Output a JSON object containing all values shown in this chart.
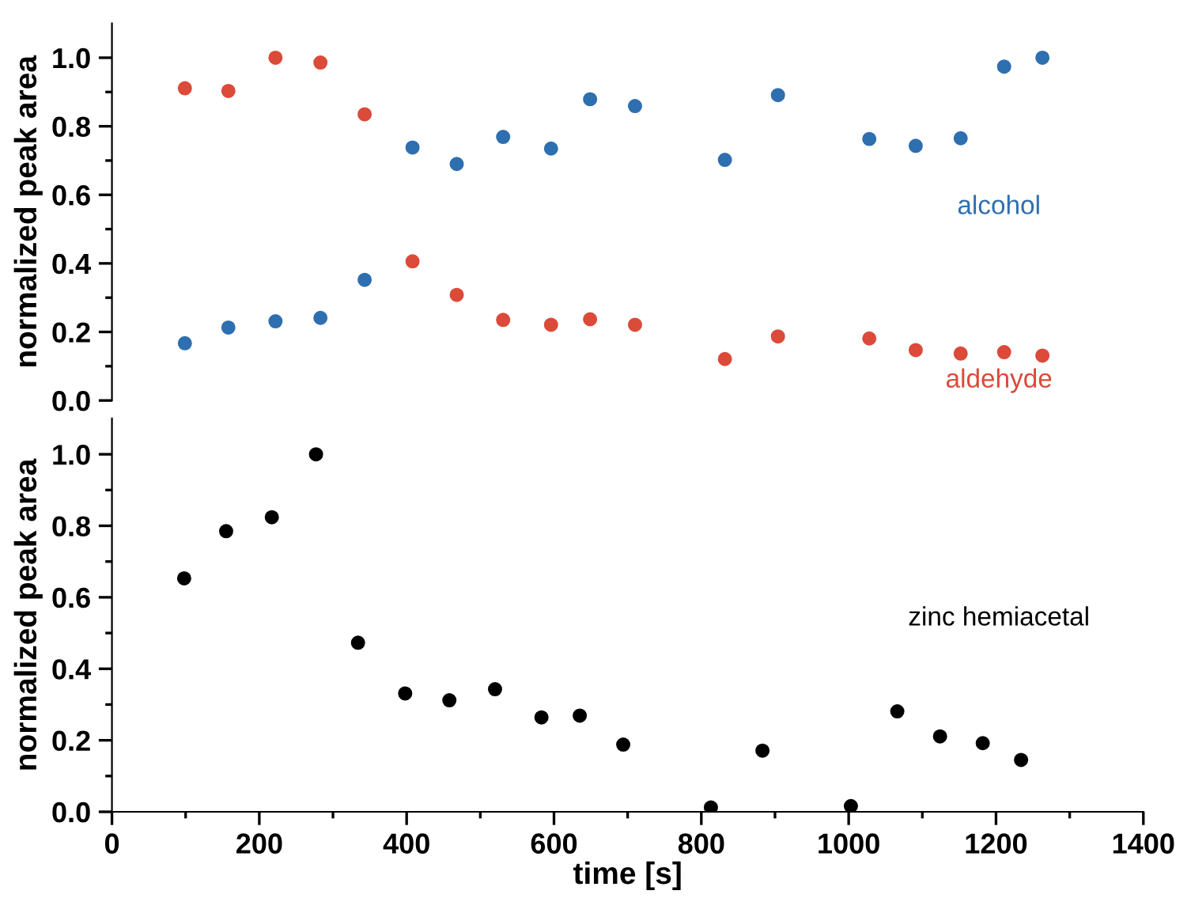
{
  "chart_data": [
    {
      "type": "scatter",
      "ylabel": "normalized peak area",
      "xlim": [
        0,
        1400
      ],
      "ylim": [
        0,
        1.1
      ],
      "yticks": [
        {
          "value": 0,
          "label": "0.0"
        },
        {
          "value": 0.2,
          "label": "0.2"
        },
        {
          "value": 0.4,
          "label": "0.4"
        },
        {
          "value": 0.6,
          "label": "0.6"
        },
        {
          "value": 0.8,
          "label": "0.8"
        },
        {
          "value": 1.0,
          "label": "1.0"
        }
      ],
      "tick_labels": "y",
      "marker": "circle",
      "grid": false,
      "legend": false,
      "x": [
        99,
        158,
        222,
        283,
        343,
        408,
        468,
        531,
        596,
        649,
        710,
        832,
        904,
        1028,
        1091,
        1152,
        1211,
        1263
      ],
      "series": [
        {
          "name": "alcohol",
          "color": "#2e6fb0",
          "values": [
            0.167,
            0.213,
            0.231,
            0.241,
            0.352,
            0.738,
            0.69,
            0.769,
            0.735,
            0.879,
            0.859,
            0.702,
            0.891,
            0.763,
            0.743,
            0.765,
            0.974,
            1.0
          ]
        },
        {
          "name": "aldehyde",
          "color": "#dc4a3a",
          "values": [
            0.911,
            0.903,
            1.0,
            0.986,
            0.835,
            0.406,
            0.308,
            0.235,
            0.221,
            0.237,
            0.221,
            0.121,
            0.187,
            0.181,
            0.147,
            0.137,
            0.141,
            0.131
          ]
        }
      ]
    },
    {
      "type": "scatter",
      "xlabel": "time [s]",
      "ylabel": "normalized peak area",
      "xlim": [
        0,
        1400
      ],
      "xticks": [
        0,
        200,
        400,
        600,
        800,
        1000,
        1200,
        1400
      ],
      "ylim": [
        0,
        1.1
      ],
      "yticks": [
        {
          "value": 0,
          "label": "0.0"
        },
        {
          "value": 0.2,
          "label": "0.2"
        },
        {
          "value": 0.4,
          "label": "0.4"
        },
        {
          "value": 0.6,
          "label": "0.6"
        },
        {
          "value": 0.8,
          "label": "0.8"
        },
        {
          "value": 1.0,
          "label": "1.0"
        }
      ],
      "marker": "circle",
      "grid": false,
      "legend": false,
      "x": [
        98,
        155,
        217,
        277,
        334,
        398,
        458,
        520,
        583,
        635,
        694,
        813,
        883,
        1003,
        1066,
        1124,
        1182,
        1234
      ],
      "series": [
        {
          "name": "zinc hemiacetal",
          "color": "#000000",
          "values": [
            0.653,
            0.785,
            0.824,
            1.0,
            0.473,
            0.331,
            0.312,
            0.343,
            0.264,
            0.269,
            0.188,
            0.012,
            0.171,
            0.016,
            0.281,
            0.211,
            0.192,
            0.145
          ]
        }
      ]
    }
  ]
}
